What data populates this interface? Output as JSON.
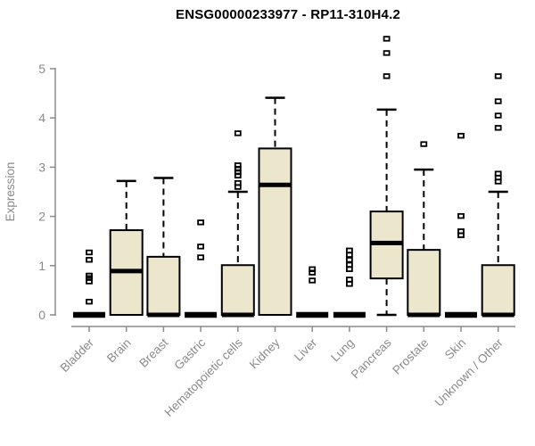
{
  "colors": {
    "box_fill": "#ECE7CC",
    "box_stroke": "#000000",
    "median": "#000000",
    "whisker": "#000000",
    "axis": "#8a8a8a",
    "tick_label": "#8a8a8a",
    "title": "#000000"
  },
  "chart_data": {
    "type": "boxplot",
    "title": "ENSG00000233977 - RP11-310H4.2",
    "ylabel": "Expression",
    "xlabel": "",
    "ylim": [
      0,
      5
    ],
    "yticks": [
      0,
      1,
      2,
      3,
      4,
      5
    ],
    "grid": false,
    "legend": false,
    "categories": [
      "Bladder",
      "Brain",
      "Breast",
      "Gastric",
      "Hematopoietic cells",
      "Kidney",
      "Liver",
      "Lung",
      "Pancreas",
      "Prostate",
      "Skin",
      "Unknown / Other"
    ],
    "series": [
      {
        "name": "Bladder",
        "whislo": 0,
        "q1": 0,
        "med": 0,
        "q3": 0,
        "whishi": 0,
        "outliers": [
          0.27,
          0.68,
          0.75,
          0.8,
          1.12,
          1.27
        ]
      },
      {
        "name": "Brain",
        "whislo": 0,
        "q1": 0,
        "med": 0.89,
        "q3": 1.72,
        "whishi": 2.72,
        "outliers": []
      },
      {
        "name": "Breast",
        "whislo": 0,
        "q1": 0,
        "med": 0,
        "q3": 1.18,
        "whishi": 2.78,
        "outliers": []
      },
      {
        "name": "Gastric",
        "whislo": 0,
        "q1": 0,
        "med": 0,
        "q3": 0,
        "whishi": 0,
        "outliers": [
          1.17,
          1.39,
          1.88
        ]
      },
      {
        "name": "Hematopoietic cells",
        "whislo": 0,
        "q1": 0,
        "med": 0,
        "q3": 1.01,
        "whishi": 2.5,
        "outliers": [
          2.6,
          2.68,
          2.83,
          2.9,
          2.97,
          3.04,
          3.69
        ]
      },
      {
        "name": "Kidney",
        "whislo": 0,
        "q1": 0,
        "med": 2.64,
        "q3": 3.38,
        "whishi": 4.41,
        "outliers": []
      },
      {
        "name": "Liver",
        "whislo": 0,
        "q1": 0,
        "med": 0,
        "q3": 0,
        "whishi": 0,
        "outliers": [
          0.7,
          0.86,
          0.93
        ]
      },
      {
        "name": "Lung",
        "whislo": 0,
        "q1": 0,
        "med": 0,
        "q3": 0,
        "whishi": 0,
        "outliers": [
          0.63,
          0.72,
          0.93,
          1.02,
          1.12,
          1.22,
          1.31
        ]
      },
      {
        "name": "Pancreas",
        "whislo": 0,
        "q1": 0.74,
        "med": 1.46,
        "q3": 2.1,
        "whishi": 4.17,
        "outliers": [
          4.85,
          5.32,
          5.61
        ]
      },
      {
        "name": "Prostate",
        "whislo": 0,
        "q1": 0,
        "med": 0,
        "q3": 1.32,
        "whishi": 2.95,
        "outliers": [
          3.47
        ]
      },
      {
        "name": "Skin",
        "whislo": 0,
        "q1": 0,
        "med": 0,
        "q3": 0,
        "whishi": 0,
        "outliers": [
          1.62,
          1.7,
          2.01,
          3.64
        ]
      },
      {
        "name": "Unknown / Other",
        "whislo": 0,
        "q1": 0,
        "med": 0,
        "q3": 1.01,
        "whishi": 2.5,
        "outliers": [
          2.71,
          2.79,
          2.87,
          3.8,
          4.05,
          4.34,
          4.85
        ]
      }
    ]
  }
}
